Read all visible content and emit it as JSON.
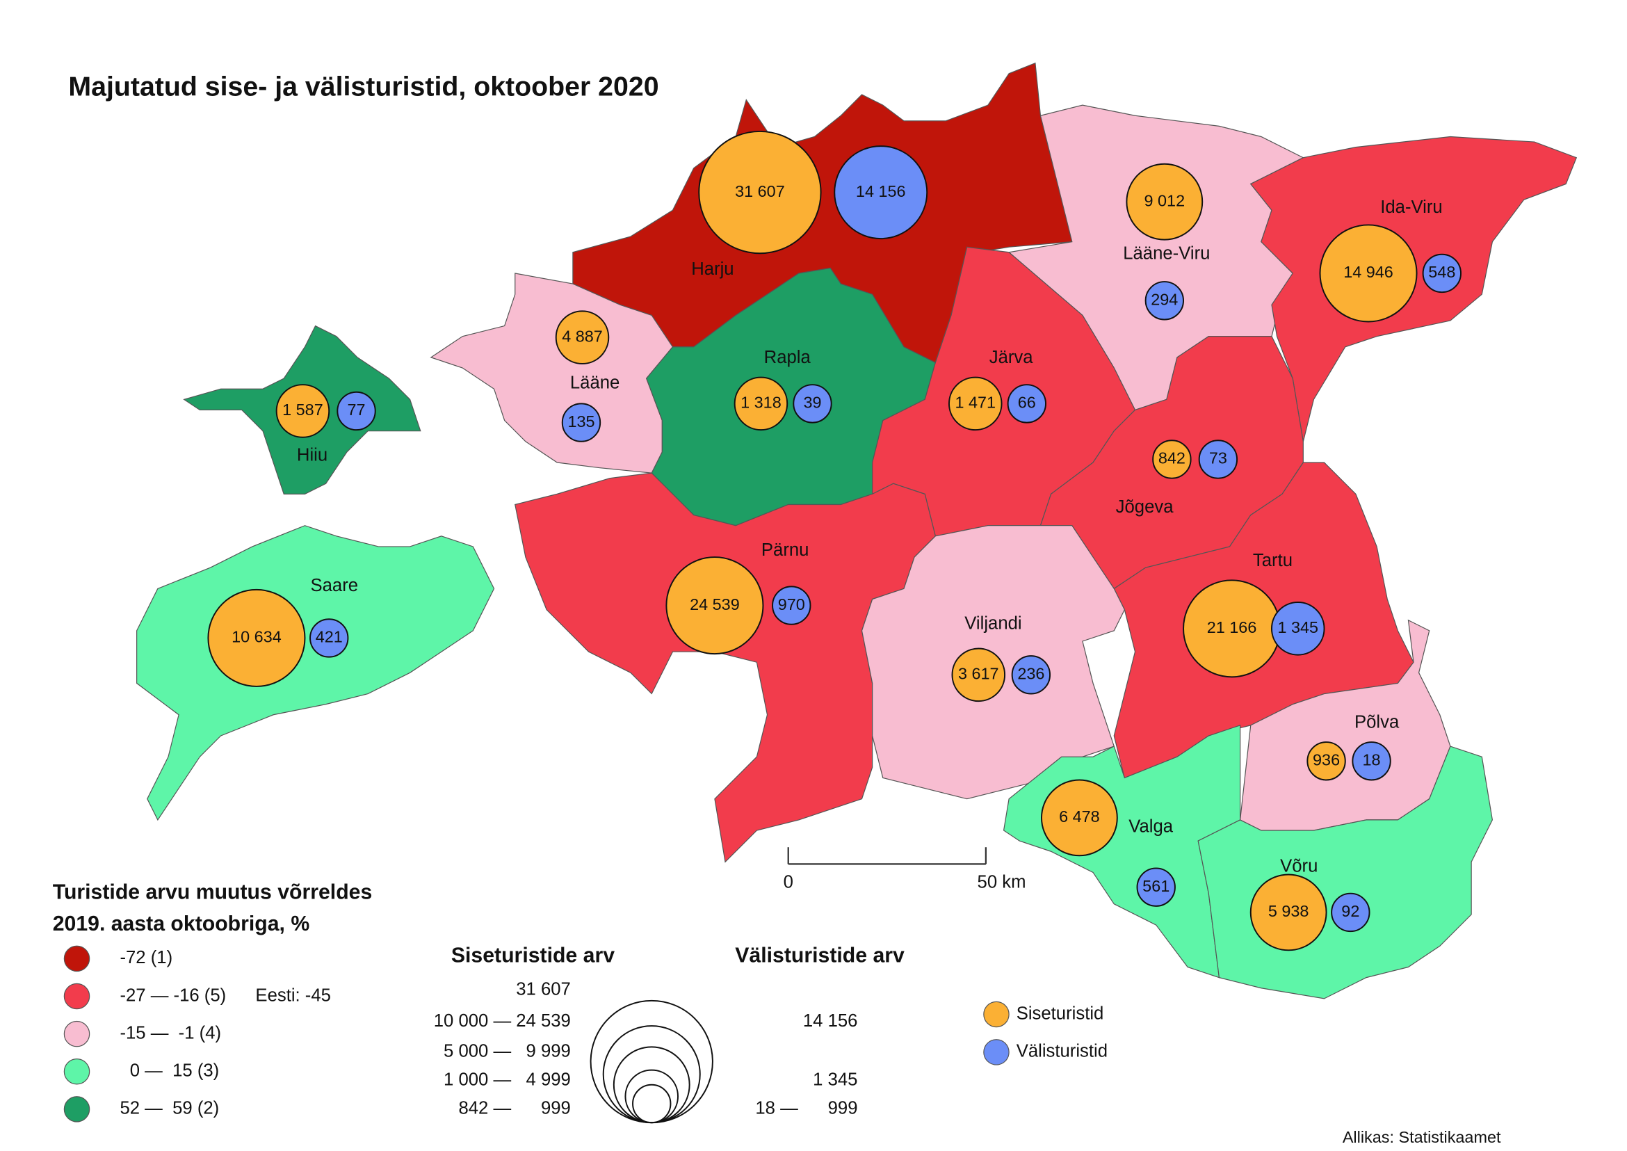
{
  "title": "Majutatud sise- ja välisturistid, oktoober 2020",
  "counties": [
    {
      "name": "Harju",
      "color": "#c0150a",
      "domestic": 31607,
      "domestic_label": "31 607",
      "foreign": 14156,
      "foreign_label": "14 156"
    },
    {
      "name": "Lääne-Viru",
      "color": "#f8bdd1",
      "domestic": 9012,
      "domestic_label": "9 012",
      "foreign": 294,
      "foreign_label": "294"
    },
    {
      "name": "Ida-Viru",
      "color": "#f23c4c",
      "domestic": 14946,
      "domestic_label": "14 946",
      "foreign": 548,
      "foreign_label": "548"
    },
    {
      "name": "Lääne",
      "color": "#f8bdd1",
      "domestic": 4887,
      "domestic_label": "4 887",
      "foreign": 135,
      "foreign_label": "135"
    },
    {
      "name": "Rapla",
      "color": "#1e9e64",
      "domestic": 1318,
      "domestic_label": "1 318",
      "foreign": 39,
      "foreign_label": "39"
    },
    {
      "name": "Järva",
      "color": "#f23c4c",
      "domestic": 1471,
      "domestic_label": "1 471",
      "foreign": 66,
      "foreign_label": "66"
    },
    {
      "name": "Jõgeva",
      "color": "#f23c4c",
      "domestic": 842,
      "domestic_label": "842",
      "foreign": 73,
      "foreign_label": "73"
    },
    {
      "name": "Tartu",
      "color": "#f23c4c",
      "domestic": 21166,
      "domestic_label": "21 166",
      "foreign": 1345,
      "foreign_label": "1 345"
    },
    {
      "name": "Pärnu",
      "color": "#f23c4c",
      "domestic": 24539,
      "domestic_label": "24 539",
      "foreign": 970,
      "foreign_label": "970"
    },
    {
      "name": "Viljandi",
      "color": "#f8bdd1",
      "domestic": 3617,
      "domestic_label": "3 617",
      "foreign": 236,
      "foreign_label": "236"
    },
    {
      "name": "Valga",
      "color": "#5ef5a8",
      "domestic": 6478,
      "domestic_label": "6 478",
      "foreign": 561,
      "foreign_label": "561"
    },
    {
      "name": "Põlva",
      "color": "#f8bdd1",
      "domestic": 936,
      "domestic_label": "936",
      "foreign": 18,
      "foreign_label": "18"
    },
    {
      "name": "Võru",
      "color": "#5ef5a8",
      "domestic": 5938,
      "domestic_label": "5 938",
      "foreign": 92,
      "foreign_label": "92"
    },
    {
      "name": "Hiiu",
      "color": "#1e9e64",
      "domestic": 1587,
      "domestic_label": "1 587",
      "foreign": 77,
      "foreign_label": "77"
    },
    {
      "name": "Saare",
      "color": "#5ef5a8",
      "domestic": 10634,
      "domestic_label": "10 634",
      "foreign": 421,
      "foreign_label": "421"
    }
  ],
  "change_legend": {
    "title_lines": [
      "Turistide arvu muutus võrreldes",
      "2019. aasta oktoobriga, %"
    ],
    "classes": [
      {
        "label": "-72 (1)",
        "color": "#c0150a"
      },
      {
        "label": "-27 — -16 (5)",
        "color": "#f23c4c"
      },
      {
        "label": "-15 —  -1 (4)",
        "color": "#f8bdd1"
      },
      {
        "label": "  0 —  15 (3)",
        "color": "#5ef5a8"
      },
      {
        "label": "52 —  59 (2)",
        "color": "#1e9e64"
      }
    ],
    "total_label": "Eesti: -45"
  },
  "size_legend": {
    "domestic_title": "Siseturistide arv",
    "foreign_title": "Välisturistide arv",
    "domestic_classes": [
      {
        "from": 31607,
        "label": "31 607"
      },
      {
        "from": 10000,
        "label": "10 000 — 24 539"
      },
      {
        "from": 5000,
        "label": "5 000 —   9 999"
      },
      {
        "from": 1000,
        "label": "1 000 —   4 999"
      },
      {
        "from": 842,
        "label": "842 —      999"
      }
    ],
    "foreign_classes": [
      {
        "from": 14156,
        "label": "14 156"
      },
      {
        "from": 1345,
        "label": "1 345"
      },
      {
        "from": 18,
        "label": "18 —      999"
      }
    ]
  },
  "marker_legend": [
    {
      "label": "Siseturistid",
      "color": "#fbb034"
    },
    {
      "label": "Välisturistid",
      "color": "#6b8ef7"
    }
  ],
  "scale_bar": [
    "0",
    "50 km"
  ],
  "source": "Allikas: Statistikaamet"
}
